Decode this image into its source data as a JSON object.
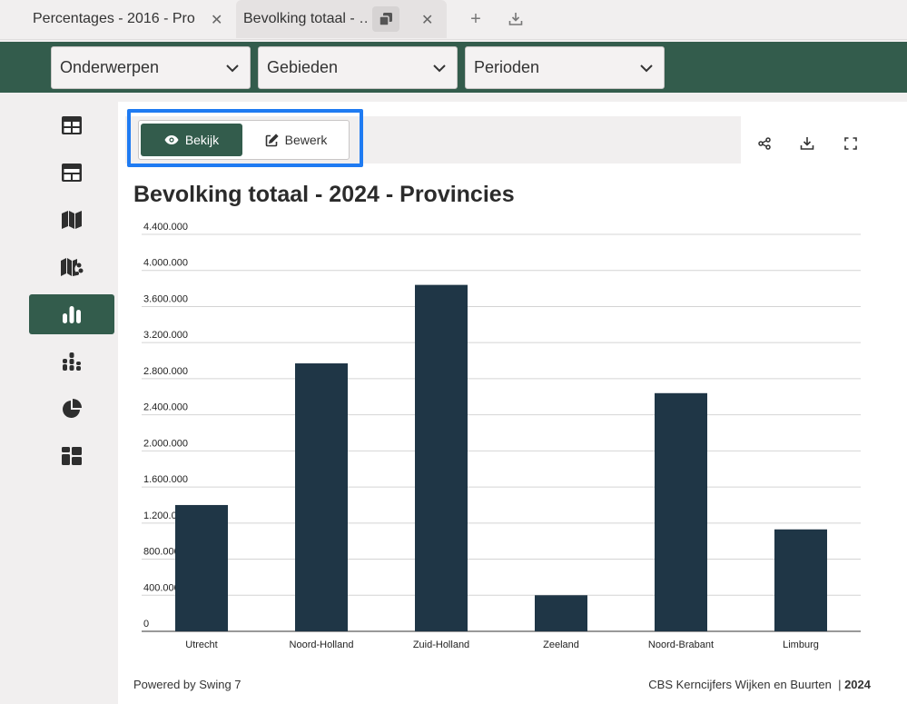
{
  "tabs": [
    {
      "label": "Percentages - 2016 - Pro…"
    },
    {
      "label": "Bevolking totaal - …"
    }
  ],
  "filters": {
    "topics": "Onderwerpen",
    "regions": "Gebieden",
    "periods": "Perioden"
  },
  "view_toggle": {
    "view_label": "Bekijk",
    "edit_label": "Bewerk"
  },
  "page_title": "Bevolking totaal - 2024 - Provincies",
  "chart_data": {
    "type": "bar",
    "title": "Bevolking totaal - 2024 - Provincies",
    "categories": [
      "Utrecht",
      "Noord-Holland",
      "Zuid-Holland",
      "Zeeland",
      "Noord-Brabant",
      "Limburg"
    ],
    "values": [
      1400000,
      2970000,
      3840000,
      400000,
      2640000,
      1130000
    ],
    "ylim": [
      0,
      4400000
    ],
    "yticks": [
      0,
      400000,
      800000,
      1200000,
      1600000,
      2000000,
      2400000,
      2800000,
      3200000,
      3600000,
      4000000,
      4400000
    ],
    "ytick_labels": [
      "0",
      "400.000",
      "800.000",
      "1.200.000",
      "1.600.000",
      "2.000.000",
      "2.400.000",
      "2.800.000",
      "3.200.000",
      "3.600.000",
      "4.000.000",
      "4.400.000"
    ],
    "xlabel": "",
    "ylabel": "",
    "bar_color": "#1f3646",
    "grid": true
  },
  "footer": {
    "powered_by": "Powered by Swing 7",
    "source": "CBS Kerncijfers Wijken en Buurten",
    "year": "2024"
  },
  "colors": {
    "brand_green": "#335c4c",
    "focus_blue": "#1f7bf2",
    "bar": "#1f3646"
  }
}
